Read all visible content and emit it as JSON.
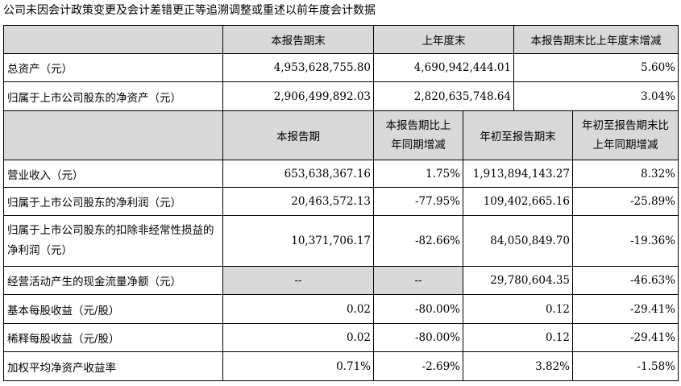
{
  "caption": "公司未因会计政策变更及会计差错更正等追溯调整或重述以前年度会计数据",
  "table1": {
    "headers": [
      "本报告期末",
      "上年度末",
      "本报告期末比上年度末增减"
    ],
    "rows": [
      {
        "label": "总资产（元）",
        "values": [
          "4,953,628,755.80",
          "4,690,942,444.01",
          "5.60%"
        ]
      },
      {
        "label": "归属于上市公司股东的净资产（元）",
        "values": [
          "2,906,499,892.03",
          "2,820,635,748.64",
          "3.04%"
        ]
      }
    ]
  },
  "table2": {
    "headers": [
      "本报告期",
      "本报告期比上年同期增减",
      "年初至报告期末",
      "年初至报告期末比上年同期增减"
    ],
    "rows": [
      {
        "label": "营业收入（元）",
        "values": [
          "653,638,367.16",
          "1.75%",
          "1,913,894,143.27",
          "8.32%"
        ]
      },
      {
        "label": "归属于上市公司股东的净利润（元）",
        "values": [
          "20,463,572.13",
          "-77.95%",
          "109,402,665.16",
          "-25.89%"
        ]
      },
      {
        "label": "归属于上市公司股东的扣除非经常性损益的净利润（元）",
        "values": [
          "10,371,706.17",
          "-82.66%",
          "84,050,849.70",
          "-19.36%"
        ]
      },
      {
        "label": "经营活动产生的现金流量净额（元）",
        "values": [
          "--",
          "--",
          "29,780,604.35",
          "-46.63%"
        ]
      },
      {
        "label": "基本每股收益（元/股）",
        "values": [
          "0.02",
          "-80.00%",
          "0.12",
          "-29.41%"
        ]
      },
      {
        "label": "稀释每股收益（元/股）",
        "values": [
          "0.02",
          "-80.00%",
          "0.12",
          "-29.41%"
        ]
      },
      {
        "label": "加权平均净资产收益率",
        "values": [
          "0.71%",
          "-2.69%",
          "3.82%",
          "-1.58%"
        ]
      }
    ]
  }
}
